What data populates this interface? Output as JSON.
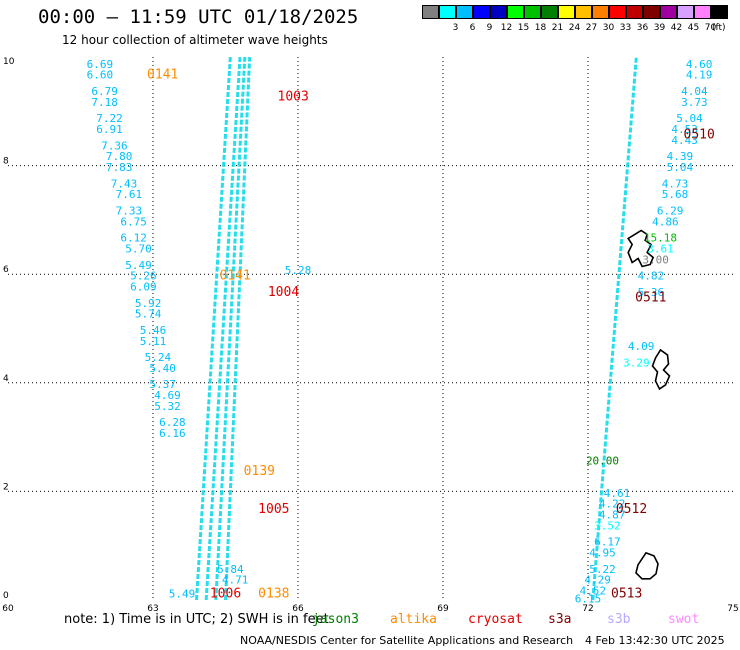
{
  "header": {
    "title": "00:00 – 11:59 UTC 01/18/2025",
    "subtitle": "12 hour collection of altimeter wave heights"
  },
  "legend": {
    "unit": "(ft)",
    "bins": [
      {
        "label": "",
        "color": "#808080"
      },
      {
        "label": "3",
        "color": "#00ffff"
      },
      {
        "label": "6",
        "color": "#00bfff"
      },
      {
        "label": "9",
        "color": "#0000ff"
      },
      {
        "label": "12",
        "color": "#0000c0"
      },
      {
        "label": "15",
        "color": "#00ff00"
      },
      {
        "label": "18",
        "color": "#00c000"
      },
      {
        "label": "21",
        "color": "#008000"
      },
      {
        "label": "24",
        "color": "#ffff00"
      },
      {
        "label": "27",
        "color": "#ffc000"
      },
      {
        "label": "30",
        "color": "#ff8000"
      },
      {
        "label": "33",
        "color": "#ff0000"
      },
      {
        "label": "36",
        "color": "#c00000"
      },
      {
        "label": "39",
        "color": "#800000"
      },
      {
        "label": "42",
        "color": "#a000a0"
      },
      {
        "label": "45",
        "color": "#d8a0ff"
      },
      {
        "label": "70",
        "color": "#ff80ff"
      },
      {
        "label": "",
        "color": "#000000"
      }
    ]
  },
  "axes": {
    "x_ticks": [
      "60",
      "63",
      "66",
      "69",
      "72",
      "75"
    ],
    "y_ticks": [
      "0",
      "2",
      "4",
      "6",
      "8",
      "10"
    ],
    "x_range": [
      60,
      75
    ],
    "y_range": [
      0,
      10
    ]
  },
  "mission_colors": {
    "jason3": "#008000",
    "altika": "#ff8c00",
    "cryosat": "#e00000",
    "s3a": "#800000",
    "s3b": "#b8a8ff",
    "swot": "#ff88ff"
  },
  "map_data": {
    "passes": [
      {
        "mission": "s3b",
        "id": "1003",
        "x": [
          64.5,
          65.0
        ],
        "y": [
          0,
          10
        ]
      },
      {
        "mission": "s3b",
        "id": "1004",
        "x": [
          64.3,
          64.9
        ],
        "y": [
          0,
          10
        ]
      },
      {
        "mission": "s3b",
        "id": "1005",
        "x": [
          64.1,
          64.8
        ],
        "y": [
          0,
          10
        ]
      },
      {
        "mission": "s3b",
        "id": "1006",
        "x": [
          63.9,
          64.6
        ],
        "y": [
          0,
          10
        ]
      },
      {
        "mission": "s3a",
        "id": "0510",
        "x": [
          72.1,
          73.0
        ],
        "y": [
          0,
          10
        ]
      }
    ],
    "track_labels": [
      {
        "text": "0141",
        "color": "#ff8c00",
        "lon": 63.2,
        "lat": 9.6
      },
      {
        "text": "1003",
        "color": "#e00000",
        "lon": 65.9,
        "lat": 9.2
      },
      {
        "text": "0510",
        "color": "#800000",
        "lon": 74.3,
        "lat": 8.5
      },
      {
        "text": "0141",
        "color": "#ff8c00",
        "lon": 64.7,
        "lat": 5.9
      },
      {
        "text": "1004",
        "color": "#e00000",
        "lon": 65.7,
        "lat": 5.6
      },
      {
        "text": "0511",
        "color": "#800000",
        "lon": 73.3,
        "lat": 5.5
      },
      {
        "text": "0139",
        "color": "#ff8c00",
        "lon": 65.2,
        "lat": 2.3
      },
      {
        "text": "1005",
        "color": "#e00000",
        "lon": 65.5,
        "lat": 1.6
      },
      {
        "text": "0512",
        "color": "#800000",
        "lon": 72.9,
        "lat": 1.6
      },
      {
        "text": "1006",
        "color": "#e00000",
        "lon": 64.5,
        "lat": 0.05
      },
      {
        "text": "0138",
        "color": "#ff8c00",
        "lon": 65.5,
        "lat": 0.05
      },
      {
        "text": "0513",
        "color": "#800000",
        "lon": 72.8,
        "lat": 0.05
      }
    ],
    "measurements": [
      {
        "text": "6.69",
        "color": "#00bfff",
        "lon": 61.9,
        "lat": 9.8
      },
      {
        "text": "6.60",
        "color": "#00bfff",
        "lon": 61.9,
        "lat": 9.6
      },
      {
        "text": "6.79",
        "color": "#00bfff",
        "lon": 62.0,
        "lat": 9.3
      },
      {
        "text": "7.18",
        "color": "#00bfff",
        "lon": 62.0,
        "lat": 9.1
      },
      {
        "text": "7.22",
        "color": "#00bfff",
        "lon": 62.1,
        "lat": 8.8
      },
      {
        "text": "6.91",
        "color": "#00bfff",
        "lon": 62.1,
        "lat": 8.6
      },
      {
        "text": "7.36",
        "color": "#00bfff",
        "lon": 62.2,
        "lat": 8.3
      },
      {
        "text": "7.80",
        "color": "#00bfff",
        "lon": 62.3,
        "lat": 8.1
      },
      {
        "text": "7.83",
        "color": "#00bfff",
        "lon": 62.3,
        "lat": 7.9
      },
      {
        "text": "7.43",
        "color": "#00bfff",
        "lon": 62.4,
        "lat": 7.6
      },
      {
        "text": "7.61",
        "color": "#00bfff",
        "lon": 62.5,
        "lat": 7.4
      },
      {
        "text": "7.33",
        "color": "#00bfff",
        "lon": 62.5,
        "lat": 7.1
      },
      {
        "text": "6.75",
        "color": "#00bfff",
        "lon": 62.6,
        "lat": 6.9
      },
      {
        "text": "6.12",
        "color": "#00bfff",
        "lon": 62.6,
        "lat": 6.6
      },
      {
        "text": "5.70",
        "color": "#00bfff",
        "lon": 62.7,
        "lat": 6.4
      },
      {
        "text": "5.49",
        "color": "#00bfff",
        "lon": 62.7,
        "lat": 6.1
      },
      {
        "text": "5.26",
        "color": "#00bfff",
        "lon": 62.8,
        "lat": 5.9
      },
      {
        "text": "6.09",
        "color": "#00bfff",
        "lon": 62.8,
        "lat": 5.7
      },
      {
        "text": "5.92",
        "color": "#00bfff",
        "lon": 62.9,
        "lat": 5.4
      },
      {
        "text": "5.74",
        "color": "#00bfff",
        "lon": 62.9,
        "lat": 5.2
      },
      {
        "text": "5.46",
        "color": "#00bfff",
        "lon": 63.0,
        "lat": 4.9
      },
      {
        "text": "5.11",
        "color": "#00bfff",
        "lon": 63.0,
        "lat": 4.7
      },
      {
        "text": "5.24",
        "color": "#00bfff",
        "lon": 63.1,
        "lat": 4.4
      },
      {
        "text": "5.40",
        "color": "#00bfff",
        "lon": 63.2,
        "lat": 4.2
      },
      {
        "text": "5.37",
        "color": "#00bfff",
        "lon": 63.2,
        "lat": 3.9
      },
      {
        "text": "4.69",
        "color": "#00bfff",
        "lon": 63.3,
        "lat": 3.7
      },
      {
        "text": "5.32",
        "color": "#00bfff",
        "lon": 63.3,
        "lat": 3.5
      },
      {
        "text": "6.28",
        "color": "#00bfff",
        "lon": 63.4,
        "lat": 3.2
      },
      {
        "text": "6.16",
        "color": "#00bfff",
        "lon": 63.4,
        "lat": 3.0
      },
      {
        "text": "4.60",
        "color": "#00bfff",
        "lon": 74.3,
        "lat": 9.8
      },
      {
        "text": "4.19",
        "color": "#00bfff",
        "lon": 74.3,
        "lat": 9.6
      },
      {
        "text": "4.04",
        "color": "#00bfff",
        "lon": 74.2,
        "lat": 9.3
      },
      {
        "text": "3.73",
        "color": "#00bfff",
        "lon": 74.2,
        "lat": 9.1
      },
      {
        "text": "5.04",
        "color": "#00bfff",
        "lon": 74.1,
        "lat": 8.8
      },
      {
        "text": "4.53",
        "color": "#00bfff",
        "lon": 74.0,
        "lat": 8.6
      },
      {
        "text": "4.43",
        "color": "#00bfff",
        "lon": 74.0,
        "lat": 8.4
      },
      {
        "text": "4.39",
        "color": "#00bfff",
        "lon": 73.9,
        "lat": 8.1
      },
      {
        "text": "5.04",
        "color": "#00bfff",
        "lon": 73.9,
        "lat": 7.9
      },
      {
        "text": "4.73",
        "color": "#00bfff",
        "lon": 73.8,
        "lat": 7.6
      },
      {
        "text": "5.68",
        "color": "#00bfff",
        "lon": 73.8,
        "lat": 7.4
      },
      {
        "text": "6.29",
        "color": "#00bfff",
        "lon": 73.7,
        "lat": 7.1
      },
      {
        "text": "4.86",
        "color": "#00bfff",
        "lon": 73.6,
        "lat": 6.9
      },
      {
        "text": "15.18",
        "color": "#00c000",
        "lon": 73.5,
        "lat": 6.6
      },
      {
        "text": "3.61",
        "color": "#00ffff",
        "lon": 73.5,
        "lat": 6.4
      },
      {
        "text": "3.00",
        "color": "#808080",
        "lon": 73.4,
        "lat": 6.2
      },
      {
        "text": "4.82",
        "color": "#00bfff",
        "lon": 73.3,
        "lat": 5.9
      },
      {
        "text": "5.36",
        "color": "#00bfff",
        "lon": 73.3,
        "lat": 5.6
      },
      {
        "text": "4.09",
        "color": "#00bfff",
        "lon": 73.1,
        "lat": 4.6
      },
      {
        "text": "3.29",
        "color": "#00ffff",
        "lon": 73.0,
        "lat": 4.3
      },
      {
        "text": "20.00",
        "color": "#008000",
        "lon": 72.3,
        "lat": 2.5
      },
      {
        "text": "4.61",
        "color": "#00bfff",
        "lon": 72.6,
        "lat": 1.9
      },
      {
        "text": "4.22",
        "color": "#00bfff",
        "lon": 72.5,
        "lat": 1.7
      },
      {
        "text": "4.87",
        "color": "#00bfff",
        "lon": 72.5,
        "lat": 1.5
      },
      {
        "text": "3.52",
        "color": "#00ffff",
        "lon": 72.4,
        "lat": 1.3
      },
      {
        "text": "6.17",
        "color": "#00bfff",
        "lon": 72.4,
        "lat": 1.0
      },
      {
        "text": "4.95",
        "color": "#00bfff",
        "lon": 72.3,
        "lat": 0.8
      },
      {
        "text": "5.22",
        "color": "#00bfff",
        "lon": 72.3,
        "lat": 0.5
      },
      {
        "text": "4.29",
        "color": "#00bfff",
        "lon": 72.2,
        "lat": 0.3
      },
      {
        "text": "4.52",
        "color": "#00bfff",
        "lon": 72.1,
        "lat": 0.1
      },
      {
        "text": "6.15",
        "color": "#00bfff",
        "lon": 72.0,
        "lat": -0.05
      },
      {
        "text": "5.84",
        "color": "#00bfff",
        "lon": 64.6,
        "lat": 0.5
      },
      {
        "text": "4.71",
        "color": "#00bfff",
        "lon": 64.7,
        "lat": 0.3
      },
      {
        "text": "5.49",
        "color": "#00bfff",
        "lon": 63.6,
        "lat": 0.05
      },
      {
        "text": "5.28",
        "color": "#00bfff",
        "lon": 66.0,
        "lat": 6.0
      }
    ],
    "islands": [
      {
        "name": "maldives-north",
        "lon": 73.1,
        "lat": 6.4
      },
      {
        "name": "maldives-central",
        "lon": 73.5,
        "lat": 4.2
      },
      {
        "name": "maldives-south",
        "lon": 73.2,
        "lat": 0.5
      }
    ]
  },
  "footer": {
    "note": "note: 1) Time is in UTC; 2) SWH is in feet",
    "missions": [
      {
        "label": "jason3",
        "key": "jason3"
      },
      {
        "label": "altika",
        "key": "altika"
      },
      {
        "label": "cryosat",
        "key": "cryosat"
      },
      {
        "label": "s3a",
        "key": "s3a"
      },
      {
        "label": "s3b",
        "key": "s3b"
      },
      {
        "label": "swot",
        "key": "swot"
      }
    ],
    "credit": "NOAA/NESDIS Center for Satellite Applications and Research",
    "timestamp": "4 Feb 13:42:30 UTC 2025"
  }
}
